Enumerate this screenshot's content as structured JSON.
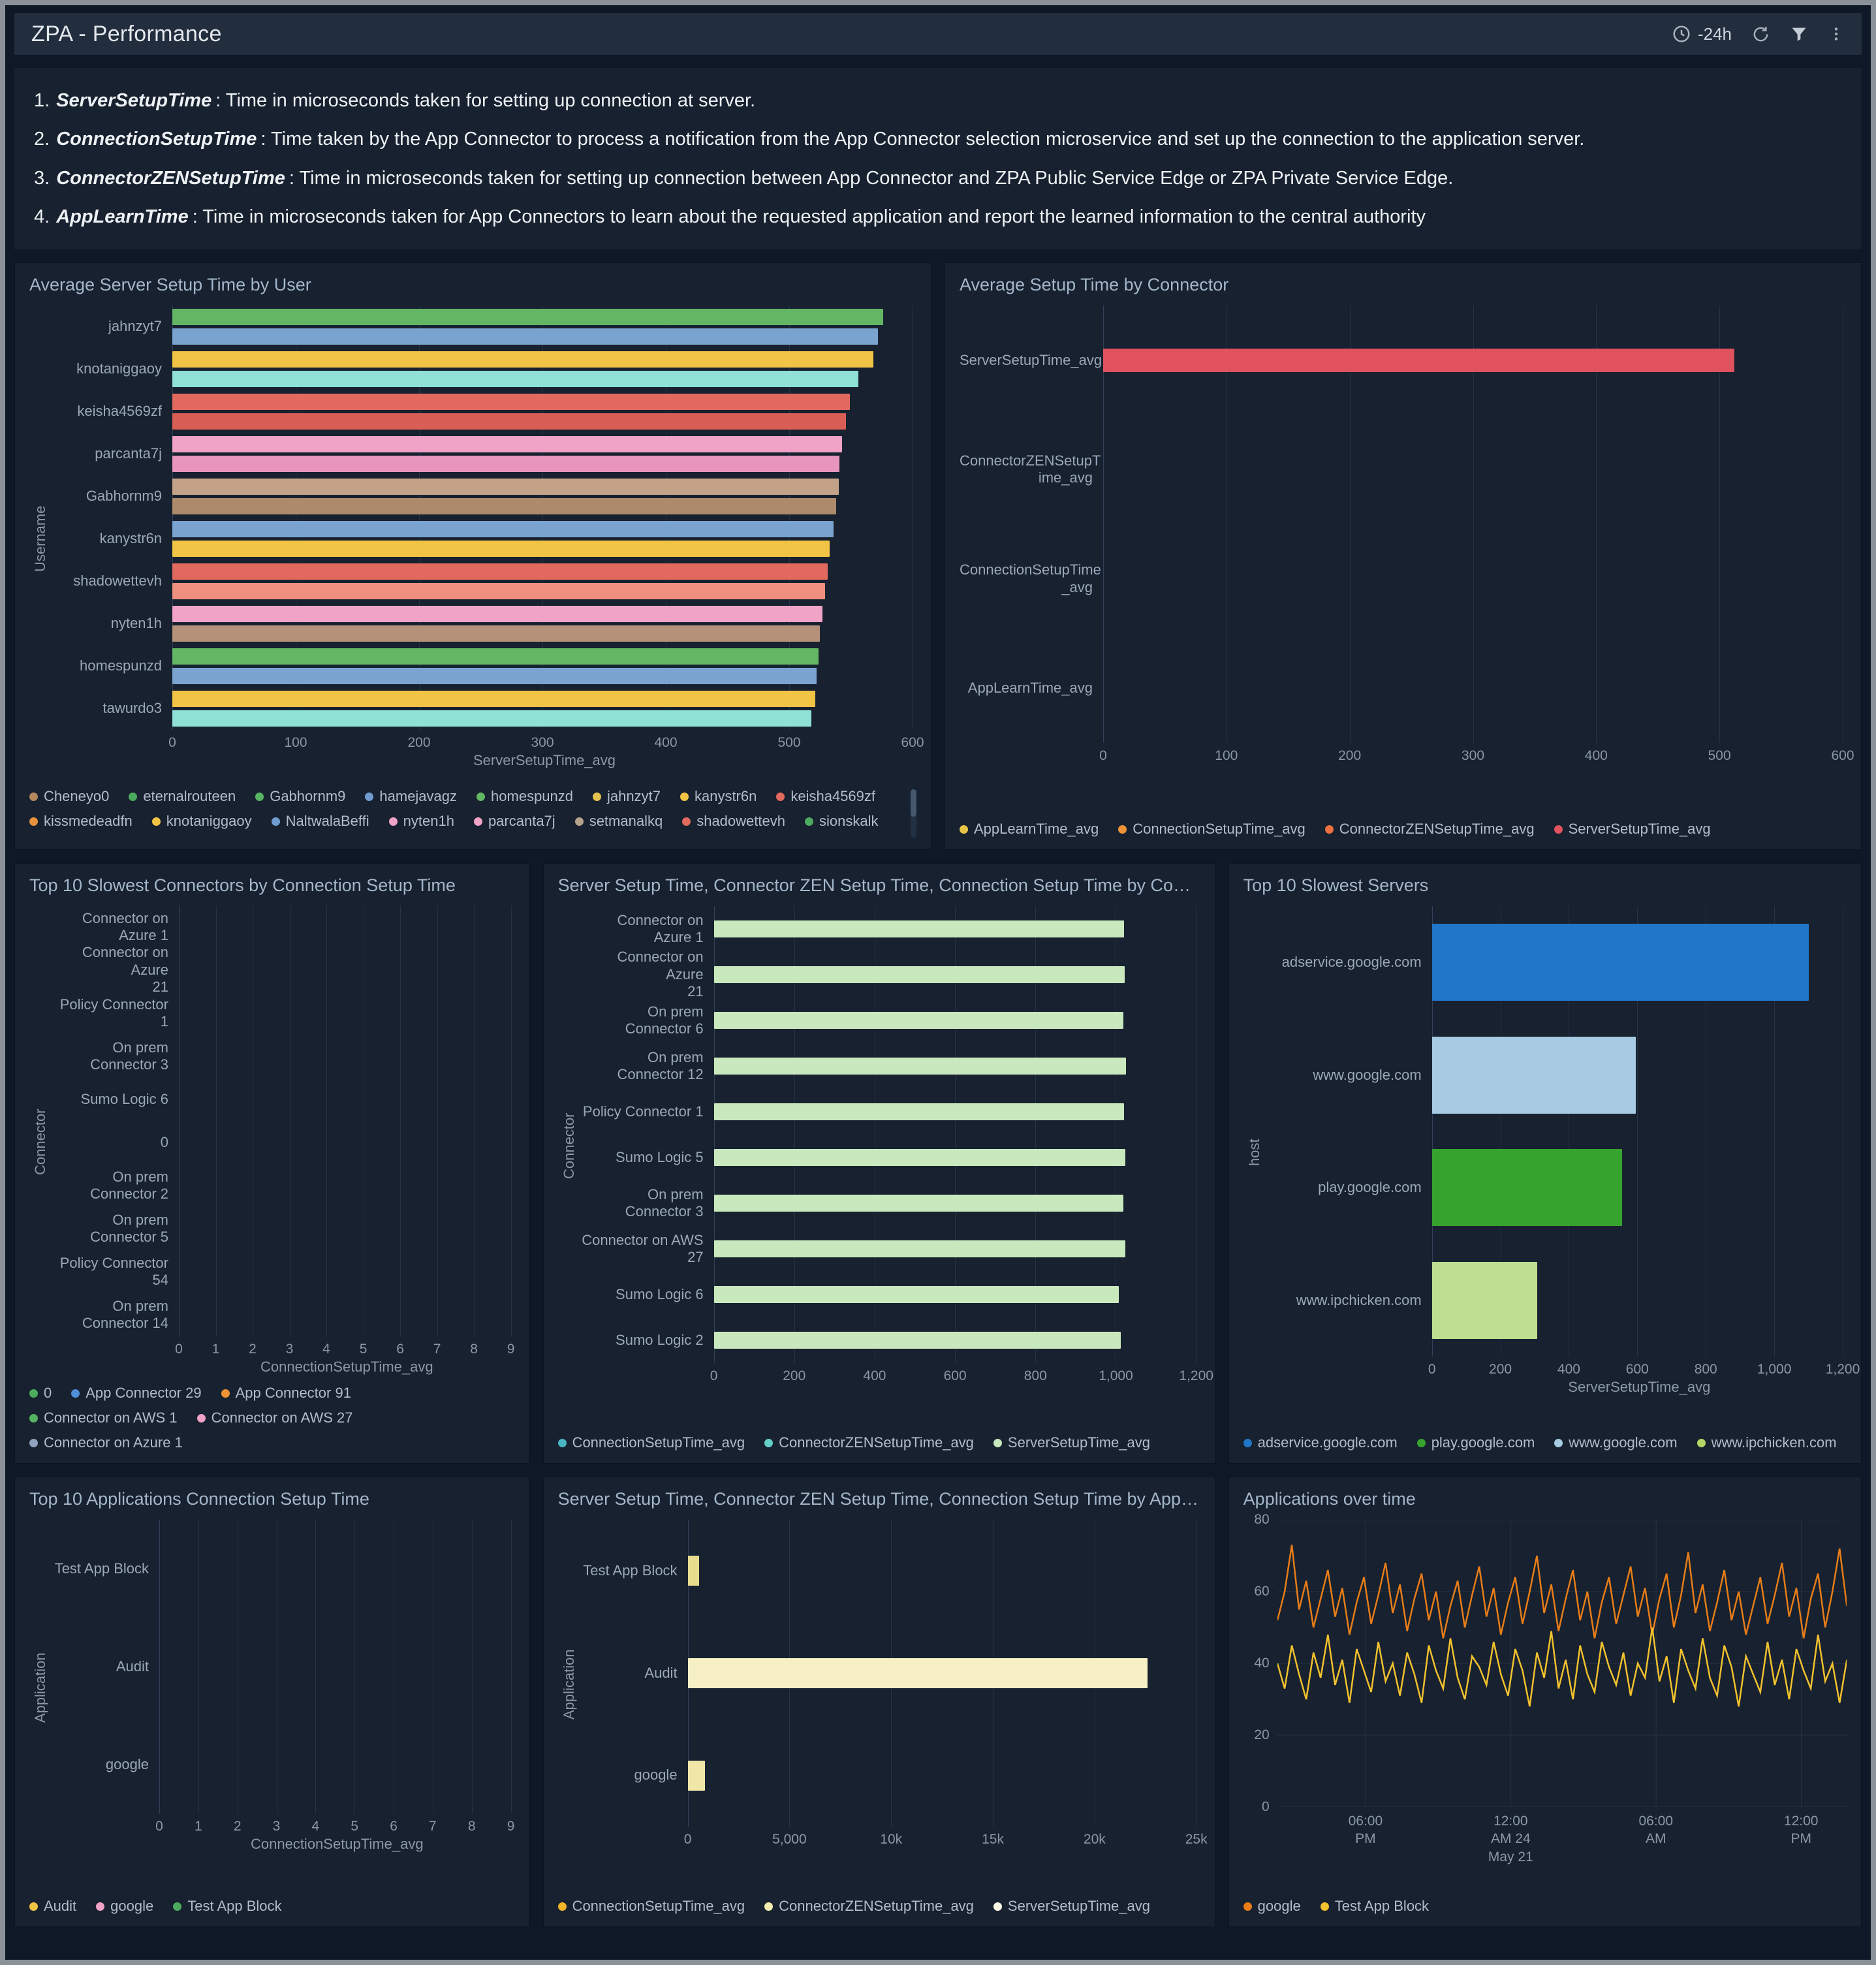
{
  "header": {
    "title": "ZPA - Performance",
    "time_range": "-24h"
  },
  "description": {
    "items": [
      {
        "num": "1.",
        "term": "ServerSetupTime",
        "text": ": Time in microseconds taken for setting up connection at server."
      },
      {
        "num": "2.",
        "term": "ConnectionSetupTime",
        "text": ": Time taken by the App Connector to process a notification from the App Connector selection microservice and set up the connection to the application server."
      },
      {
        "num": "3.",
        "term": "ConnectorZENSetupTime",
        "text": ": Time in microseconds taken for setting up connection between App Connector and ZPA Public Service Edge or ZPA Private Service Edge."
      },
      {
        "num": "4.",
        "term": "AppLearnTime",
        "text": ": Time in microseconds taken for App Connectors to learn about the requested application and report the learned information to the central authority"
      }
    ]
  },
  "chart_data": [
    {
      "type": "bar",
      "title": "Average Server Setup Time by User",
      "xlabel": "ServerSetupTime_avg",
      "ylabel": "Username",
      "xmax": 600,
      "xticks": [
        "0",
        "100",
        "200",
        "300",
        "400",
        "500",
        "600"
      ],
      "groups": [
        {
          "label": "jahnzyt7",
          "bars": [
            {
              "value": 576,
              "color": "#63b663"
            },
            {
              "value": 572,
              "color": "#7ba3cf"
            }
          ]
        },
        {
          "label": "knotaniggaoy",
          "bars": [
            {
              "value": 568,
              "color": "#f2c445"
            },
            {
              "value": 556,
              "color": "#8fe0d5"
            }
          ]
        },
        {
          "label": "keisha4569zf",
          "bars": [
            {
              "value": 549,
              "color": "#e2695e"
            },
            {
              "value": 546,
              "color": "#d95f55"
            }
          ]
        },
        {
          "label": "parcanta7j",
          "bars": [
            {
              "value": 543,
              "color": "#f0a3c6"
            },
            {
              "value": 541,
              "color": "#e895bd"
            }
          ]
        },
        {
          "label": "Gabhornm9",
          "bars": [
            {
              "value": 540,
              "color": "#c4a287"
            },
            {
              "value": 538,
              "color": "#ad8a6b"
            }
          ]
        },
        {
          "label": "kanystr6n",
          "bars": [
            {
              "value": 536,
              "color": "#7ba3cf"
            },
            {
              "value": 533,
              "color": "#f2c445"
            }
          ]
        },
        {
          "label": "shadowettevh",
          "bars": [
            {
              "value": 531,
              "color": "#e2695e"
            },
            {
              "value": 529,
              "color": "#ef8f7f"
            }
          ]
        },
        {
          "label": "nyten1h",
          "bars": [
            {
              "value": 527,
              "color": "#f0a3c6"
            },
            {
              "value": 525,
              "color": "#b59179"
            }
          ]
        },
        {
          "label": "homespunzd",
          "bars": [
            {
              "value": 524,
              "color": "#63b663"
            },
            {
              "value": 522,
              "color": "#7ba3cf"
            }
          ]
        },
        {
          "label": "tawurdo3",
          "bars": [
            {
              "value": 521,
              "color": "#f2c445"
            },
            {
              "value": 518,
              "color": "#8fe0d5"
            }
          ]
        }
      ],
      "legend": [
        {
          "label": "Cheneyo0",
          "color": "#b5885f"
        },
        {
          "label": "eternalrouteen",
          "color": "#4cab5e"
        },
        {
          "label": "Gabhornm9",
          "color": "#55b463"
        },
        {
          "label": "hamejavagz",
          "color": "#6f9bd1"
        },
        {
          "label": "homespunzd",
          "color": "#63b663"
        },
        {
          "label": "jahnzyt7",
          "color": "#e3c24e"
        },
        {
          "label": "kanystr6n",
          "color": "#f2c445"
        },
        {
          "label": "keisha4569zf",
          "color": "#e2695e"
        },
        {
          "label": "kissmedeadfn",
          "color": "#e8923f"
        },
        {
          "label": "knotaniggaoy",
          "color": "#f2c445"
        },
        {
          "label": "NaltwalaBeffi",
          "color": "#6f9bd1"
        },
        {
          "label": "nyten1h",
          "color": "#f0a3c6"
        },
        {
          "label": "parcanta7j",
          "color": "#f0a3c6"
        },
        {
          "label": "setmanalkq",
          "color": "#b5a18c"
        },
        {
          "label": "shadowettevh",
          "color": "#e2695e"
        },
        {
          "label": "sionskalk",
          "color": "#4cab5e"
        },
        {
          "label": "tawurdo3",
          "color": "#8fe0d5"
        }
      ]
    },
    {
      "type": "bar",
      "title": "Average Setup Time by Connector",
      "xlabel": "",
      "ylabel": "",
      "xmax": 600,
      "xticks": [
        "0",
        "100",
        "200",
        "300",
        "400",
        "500",
        "600"
      ],
      "groups": [
        {
          "label": "ServerSetupTime_avg",
          "bars": [
            {
              "value": 512,
              "color": "#e0525e"
            }
          ]
        },
        {
          "label": "ConnectorZENSetupT\nime_avg",
          "bars": []
        },
        {
          "label": "ConnectionSetupTime\n_avg",
          "bars": []
        },
        {
          "label": "AppLearnTime_avg",
          "bars": []
        }
      ],
      "legend": [
        {
          "label": "AppLearnTime_avg",
          "color": "#e8c547"
        },
        {
          "label": "ConnectionSetupTime_avg",
          "color": "#ef9236"
        },
        {
          "label": "ConnectorZENSetupTime_avg",
          "color": "#ed7041"
        },
        {
          "label": "ServerSetupTime_avg",
          "color": "#e0525e"
        }
      ]
    },
    {
      "type": "bar",
      "title": "Top 10 Slowest Connectors by Connection Setup Time",
      "xlabel": "ConnectionSetupTime_avg",
      "ylabel": "Connector",
      "xmax": 9,
      "xticks": [
        "0",
        "1",
        "2",
        "3",
        "4",
        "5",
        "6",
        "7",
        "8",
        "9"
      ],
      "groups": [
        {
          "label": "Connector on Azure 1",
          "bars": []
        },
        {
          "label": "Connector on Azure\n21",
          "bars": []
        },
        {
          "label": "Policy Connector 1",
          "bars": []
        },
        {
          "label": "On prem Connector 3",
          "bars": []
        },
        {
          "label": "Sumo Logic 6",
          "bars": []
        },
        {
          "label": "0",
          "bars": []
        },
        {
          "label": "On prem Connector 2",
          "bars": []
        },
        {
          "label": "On prem Connector 5",
          "bars": []
        },
        {
          "label": "Policy Connector 54",
          "bars": []
        },
        {
          "label": "On prem Connector 14",
          "bars": []
        }
      ],
      "legend": [
        {
          "label": "0",
          "color": "#4cab5e"
        },
        {
          "label": "App Connector 29",
          "color": "#4f8fd8"
        },
        {
          "label": "App Connector 91",
          "color": "#ef9236"
        },
        {
          "label": "Connector on AWS 1",
          "color": "#55b463"
        },
        {
          "label": "Connector on AWS 27",
          "color": "#f0a3c6"
        },
        {
          "label": "Connector on Azure 1",
          "color": "#8fa3c0"
        }
      ]
    },
    {
      "type": "bar",
      "title": "Server Setup Time, Connector ZEN Setup Time, Connection Setup Time by Connec...",
      "xlabel": "",
      "ylabel": "Connector",
      "xmax": 1200,
      "xticks": [
        "0",
        "200",
        "400",
        "600",
        "800",
        "1,000",
        "1,200"
      ],
      "groups": [
        {
          "label": "Connector on Azure 1",
          "bars": [
            {
              "value": 1020,
              "color": "#c9e8bd"
            }
          ]
        },
        {
          "label": "Connector on Azure\n21",
          "bars": [
            {
              "value": 1022,
              "color": "#c9e8bd"
            }
          ]
        },
        {
          "label": "On prem Connector 6",
          "bars": [
            {
              "value": 1018,
              "color": "#c9e8bd"
            }
          ]
        },
        {
          "label": "On prem Connector 12",
          "bars": [
            {
              "value": 1025,
              "color": "#c9e8bd"
            }
          ]
        },
        {
          "label": "Policy Connector 1",
          "bars": [
            {
              "value": 1020,
              "color": "#c9e8bd"
            }
          ]
        },
        {
          "label": "Sumo Logic 5",
          "bars": [
            {
              "value": 1024,
              "color": "#c9e8bd"
            }
          ]
        },
        {
          "label": "On prem Connector 3",
          "bars": [
            {
              "value": 1019,
              "color": "#c9e8bd"
            }
          ]
        },
        {
          "label": "Connector on AWS 27",
          "bars": [
            {
              "value": 1023,
              "color": "#c9e8bd"
            }
          ]
        },
        {
          "label": "Sumo Logic 6",
          "bars": [
            {
              "value": 1008,
              "color": "#c9e8bd"
            }
          ]
        },
        {
          "label": "Sumo Logic 2",
          "bars": [
            {
              "value": 1012,
              "color": "#c9e8bd"
            }
          ]
        }
      ],
      "legend": [
        {
          "label": "ConnectionSetupTime_avg",
          "color": "#49b6c2"
        },
        {
          "label": "ConnectorZENSetupTime_avg",
          "color": "#63cfc9"
        },
        {
          "label": "ServerSetupTime_avg",
          "color": "#c9e8bd"
        }
      ]
    },
    {
      "type": "bar",
      "title": "Top 10 Slowest Servers",
      "xlabel": "ServerSetupTime_avg",
      "ylabel": "host",
      "xmax": 1200,
      "xticks": [
        "0",
        "200",
        "400",
        "600",
        "800",
        "1,000",
        "1,200"
      ],
      "groups": [
        {
          "label": "adservice.google.com",
          "bars": [
            {
              "value": 1100,
              "color": "#2176c7"
            }
          ]
        },
        {
          "label": "www.google.com",
          "bars": [
            {
              "value": 595,
              "color": "#a6cbe3"
            }
          ]
        },
        {
          "label": "play.google.com",
          "bars": [
            {
              "value": 555,
              "color": "#36a32f"
            }
          ]
        },
        {
          "label": "www.ipchicken.com",
          "bars": [
            {
              "value": 307,
              "color": "#bedd90"
            }
          ]
        }
      ],
      "legend": [
        {
          "label": "adservice.google.com",
          "color": "#2176c7"
        },
        {
          "label": "play.google.com",
          "color": "#36a32f"
        },
        {
          "label": "www.google.com",
          "color": "#a6cbe3"
        },
        {
          "label": "www.ipchicken.com",
          "color": "#b3d564"
        }
      ]
    },
    {
      "type": "bar",
      "title": "Top 10 Applications Connection Setup Time",
      "xlabel": "ConnectionSetupTime_avg",
      "ylabel": "Application",
      "xmax": 9,
      "xticks": [
        "0",
        "1",
        "2",
        "3",
        "4",
        "5",
        "6",
        "7",
        "8",
        "9"
      ],
      "groups": [
        {
          "label": "Test App Block",
          "bars": []
        },
        {
          "label": "Audit",
          "bars": []
        },
        {
          "label": "google",
          "bars": []
        }
      ],
      "legend": [
        {
          "label": "Audit",
          "color": "#f2c445"
        },
        {
          "label": "google",
          "color": "#f0a3c6"
        },
        {
          "label": "Test App Block",
          "color": "#4cab5e"
        }
      ]
    },
    {
      "type": "bar",
      "title": "Server Setup Time, Connector ZEN Setup Time, Connection Setup Time by Applica...",
      "xlabel": "",
      "ylabel": "Application",
      "xmax": 25000,
      "xticks": [
        "0",
        "5,000",
        "10k",
        "15k",
        "20k",
        "25k"
      ],
      "groups": [
        {
          "label": "Test App Block",
          "bars": [
            {
              "value": 550,
              "color": "#e8dc8f"
            }
          ]
        },
        {
          "label": "Audit",
          "bars": [
            {
              "value": 22600,
              "color": "#f6f0c4"
            }
          ]
        },
        {
          "label": "google",
          "bars": [
            {
              "value": 850,
              "color": "#efe6a8"
            }
          ]
        }
      ],
      "legend": [
        {
          "label": "ConnectionSetupTime_avg",
          "color": "#f0b42a"
        },
        {
          "label": "ConnectorZENSetupTime_avg",
          "color": "#f3ecb0"
        },
        {
          "label": "ServerSetupTime_avg",
          "color": "#fbf8e4"
        }
      ]
    },
    {
      "type": "line",
      "title": "Applications over time",
      "ymax": 80,
      "yticks": [
        "0",
        "20",
        "40",
        "60",
        "80"
      ],
      "xticks": [
        {
          "pos": 0.155,
          "lines": [
            "06:00",
            "PM"
          ]
        },
        {
          "pos": 0.41,
          "lines": [
            "12:00",
            "AM 24",
            "May 21"
          ]
        },
        {
          "pos": 0.665,
          "lines": [
            "06:00",
            "AM"
          ]
        },
        {
          "pos": 0.92,
          "lines": [
            "12:00",
            "PM"
          ]
        }
      ],
      "series": [
        {
          "name": "google",
          "color": "#e87d18",
          "values": [
            52,
            60,
            73,
            55,
            63,
            50,
            58,
            66,
            53,
            61,
            48,
            57,
            64,
            51,
            59,
            68,
            54,
            62,
            49,
            58,
            65,
            52,
            60,
            47,
            56,
            63,
            50,
            59,
            67,
            53,
            61,
            48,
            57,
            64,
            51,
            60,
            70,
            54,
            62,
            49,
            58,
            66,
            52,
            60,
            47,
            57,
            64,
            51,
            59,
            67,
            53,
            61,
            48,
            58,
            65,
            50,
            59,
            71,
            54,
            62,
            49,
            57,
            66,
            52,
            60,
            48,
            56,
            64,
            51,
            59,
            68,
            53,
            61,
            47,
            58,
            65,
            50,
            60,
            72,
            56
          ]
        },
        {
          "name": "Test App Block",
          "color": "#f2c12e",
          "values": [
            40,
            33,
            45,
            37,
            30,
            43,
            36,
            48,
            34,
            41,
            29,
            44,
            38,
            32,
            46,
            35,
            40,
            31,
            43,
            37,
            29,
            45,
            38,
            33,
            47,
            36,
            30,
            42,
            39,
            34,
            46,
            37,
            31,
            44,
            38,
            28,
            43,
            36,
            49,
            33,
            41,
            30,
            45,
            37,
            32,
            46,
            39,
            34,
            43,
            31,
            40,
            36,
            50,
            35,
            42,
            29,
            44,
            38,
            33,
            47,
            36,
            31,
            45,
            39,
            28,
            42,
            37,
            32,
            46,
            34,
            41,
            30,
            44,
            38,
            33,
            48,
            35,
            40,
            29,
            41
          ]
        }
      ],
      "legend": [
        {
          "label": "google",
          "color": "#e87d18"
        },
        {
          "label": "Test App Block",
          "color": "#f2c12e"
        }
      ]
    }
  ]
}
